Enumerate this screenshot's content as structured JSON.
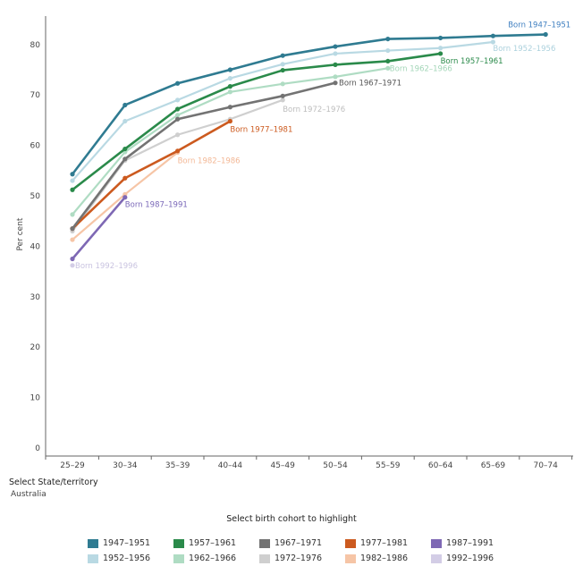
{
  "chart_data": {
    "type": "line",
    "categories": [
      "25–29",
      "30–34",
      "35–39",
      "40–44",
      "45–49",
      "50–54",
      "55–59",
      "60–64",
      "65–69",
      "70–74"
    ],
    "ylabel": "Per cent",
    "xlabel": "",
    "ylim": [
      0,
      85
    ],
    "yticks": [
      0,
      10,
      20,
      30,
      40,
      50,
      60,
      70,
      80
    ],
    "grid": false,
    "series": [
      {
        "name": "Born 1992–1996",
        "color": "#d3cde6",
        "label_color": "#c9c3e0",
        "values": [
          36.2,
          null,
          null,
          null,
          null,
          null,
          null,
          null,
          null,
          null
        ]
      },
      {
        "name": "Born 1982–1986",
        "color": "#f6c5a6",
        "label_color": "#f3b896",
        "values": [
          41.3,
          50.3,
          58.6,
          null,
          null,
          null,
          null,
          null,
          null,
          null
        ]
      },
      {
        "name": "Born 1972–1976",
        "color": "#cfcfcf",
        "label_color": "#bdbdbd",
        "values": [
          43.0,
          57.0,
          62.1,
          65.2,
          69.0,
          null,
          null,
          null,
          null,
          null
        ]
      },
      {
        "name": "Born 1962–1966",
        "color": "#afdcc3",
        "label_color": "#a3d6b8",
        "values": [
          46.3,
          58.7,
          66.0,
          70.6,
          72.2,
          73.6,
          75.3,
          null,
          null,
          null
        ]
      },
      {
        "name": "Born 1952–1956",
        "color": "#b9d9e3",
        "label_color": "#acd1dd",
        "values": [
          53.0,
          64.8,
          69.0,
          73.3,
          76.1,
          78.2,
          78.8,
          79.3,
          80.5,
          null
        ]
      },
      {
        "name": "Born 1987–1991",
        "color": "#7e68b4",
        "label_color": "#7a68b8",
        "values": [
          37.5,
          49.7,
          null,
          null,
          null,
          null,
          null,
          null,
          null,
          null
        ]
      },
      {
        "name": "Born 1977–1981",
        "color": "#cc5a1f",
        "label_color": "#cc5a1f",
        "values": [
          43.5,
          53.5,
          58.9,
          64.8,
          null,
          null,
          null,
          null,
          null,
          null
        ]
      },
      {
        "name": "Born 1967–1971",
        "color": "#737373",
        "label_color": "#555555",
        "values": [
          43.5,
          57.3,
          65.2,
          67.6,
          69.8,
          72.4,
          null,
          null,
          null,
          null
        ]
      },
      {
        "name": "Born 1957–1961",
        "color": "#2a8a4a",
        "label_color": "#2a8a4a",
        "values": [
          51.2,
          59.3,
          67.2,
          71.7,
          74.9,
          76.0,
          76.7,
          78.2,
          null,
          null
        ]
      },
      {
        "name": "Born 1947–1951",
        "color": "#2f7b91",
        "label_color": "#3f7fc0",
        "values": [
          54.3,
          68.0,
          72.3,
          75.0,
          77.8,
          79.6,
          81.1,
          81.3,
          81.7,
          82.0
        ]
      }
    ]
  },
  "controls": {
    "state_title": "Select State/territory",
    "state_value": "Australia",
    "cohort_title": "Select birth cohort to highlight"
  },
  "legend": [
    {
      "label": "1947–1951",
      "color": "#2f7b91"
    },
    {
      "label": "1957–1961",
      "color": "#2a8a4a"
    },
    {
      "label": "1967–1971",
      "color": "#737373"
    },
    {
      "label": "1977–1981",
      "color": "#cc5a1f"
    },
    {
      "label": "1987–1991",
      "color": "#7e68b4"
    },
    {
      "label": "1952–1956",
      "color": "#b9d9e3"
    },
    {
      "label": "1962–1966",
      "color": "#afdcc3"
    },
    {
      "label": "1972–1976",
      "color": "#cfcfcf"
    },
    {
      "label": "1982–1986",
      "color": "#f6c5a6"
    },
    {
      "label": "1992–1996",
      "color": "#d3cde6"
    }
  ]
}
